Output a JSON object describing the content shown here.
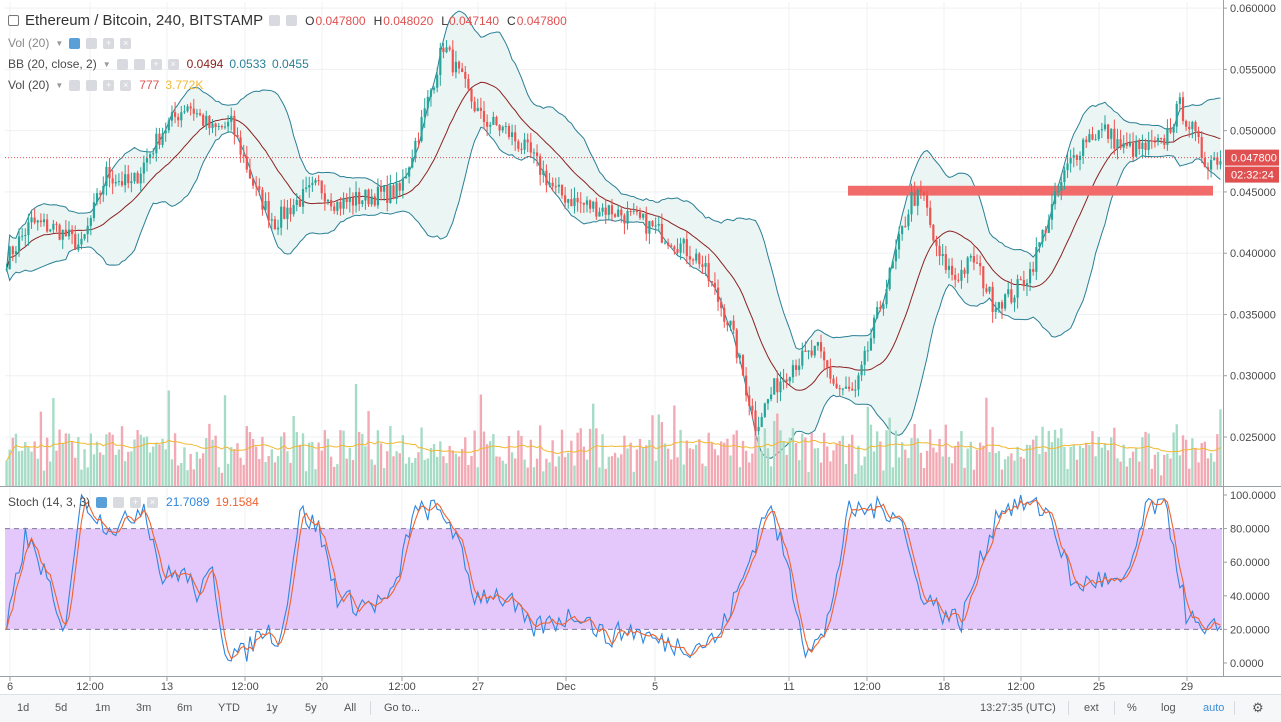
{
  "header": {
    "symbol": "Ethereum / Bitcoin, 240, BITSTAMP",
    "ohlc": [
      {
        "label": "O",
        "value": "0.047800"
      },
      {
        "label": "H",
        "value": "0.048020"
      },
      {
        "label": "L",
        "value": "0.047140"
      },
      {
        "label": "C",
        "value": "0.047800"
      }
    ]
  },
  "indicators": {
    "vol_top": {
      "label": "Vol (20)"
    },
    "bb": {
      "label": "BB (20, close, 2)",
      "basis": "0.0494",
      "upper": "0.0533",
      "lower": "0.0455"
    },
    "vol": {
      "label": "Vol (20)",
      "value": "777",
      "ma": "3.772K"
    },
    "stoch": {
      "label": "Stoch (14, 3, 3)",
      "k": "21.7089",
      "d": "19.1584"
    }
  },
  "price_axis": {
    "ticks": [
      "0.060000",
      "0.055000",
      "0.050000",
      "0.045000",
      "0.040000",
      "0.035000",
      "0.030000",
      "0.025000"
    ],
    "last_price": "0.047800",
    "countdown": "02:32:24"
  },
  "stoch_axis": {
    "ticks": [
      "100.0000",
      "80.0000",
      "60.0000",
      "40.0000",
      "20.0000",
      "0.0000"
    ]
  },
  "time_axis": {
    "labels": [
      "6",
      "12:00",
      "13",
      "12:00",
      "20",
      "12:00",
      "27",
      "Dec",
      "5",
      "11",
      "12:00",
      "18",
      "12:00",
      "25",
      "29"
    ]
  },
  "toolbar": {
    "ranges": [
      "1d",
      "5d",
      "1m",
      "3m",
      "6m",
      "YTD",
      "1y",
      "5y",
      "All"
    ],
    "goto": "Go to...",
    "clock": "13:27:35 (UTC)",
    "ext": "ext",
    "percent": "%",
    "log": "log",
    "auto": "auto"
  },
  "colors": {
    "up": "#26a69a",
    "down": "#ef5350",
    "up_vol": "#a6dbc5",
    "down_vol": "#f3a9b3",
    "bb_band": "#2a7f96",
    "bb_basis": "#8b2222",
    "bb_fill": "#ebf5f3",
    "vol_ma": "#f2b830",
    "stoch_k": "#2e86de",
    "stoch_d": "#f0632e",
    "stoch_band": "#e5c8fb",
    "resistance_zone": "#f26b6b",
    "accent": "#3d8fd8"
  },
  "chart_data": {
    "type": "candlestick",
    "title": "Ethereum / Bitcoin, 240, BITSTAMP",
    "x_labels": [
      "6",
      "12:00",
      "13",
      "12:00",
      "20",
      "12:00",
      "27",
      "Dec",
      "5",
      "11",
      "12:00",
      "18",
      "12:00",
      "25",
      "29"
    ],
    "ylim": [
      0.021,
      0.0605
    ],
    "close_path": [
      [
        0,
        0.0395
      ],
      [
        8,
        0.0425
      ],
      [
        16,
        0.042
      ],
      [
        24,
        0.0405
      ],
      [
        32,
        0.0465
      ],
      [
        40,
        0.0455
      ],
      [
        50,
        0.05
      ],
      [
        58,
        0.0522
      ],
      [
        66,
        0.05
      ],
      [
        72,
        0.0505
      ],
      [
        80,
        0.045
      ],
      [
        86,
        0.0425
      ],
      [
        92,
        0.044
      ],
      [
        100,
        0.0455
      ],
      [
        106,
        0.044
      ],
      [
        114,
        0.0445
      ],
      [
        120,
        0.0448
      ],
      [
        126,
        0.045
      ],
      [
        134,
        0.0515
      ],
      [
        140,
        0.057
      ],
      [
        146,
        0.054
      ],
      [
        152,
        0.051
      ],
      [
        160,
        0.05
      ],
      [
        168,
        0.048
      ],
      [
        176,
        0.045
      ],
      [
        184,
        0.044
      ],
      [
        194,
        0.0435
      ],
      [
        204,
        0.0425
      ],
      [
        214,
        0.041
      ],
      [
        222,
        0.0395
      ],
      [
        232,
        0.034
      ],
      [
        240,
        0.026
      ],
      [
        246,
        0.029
      ],
      [
        252,
        0.031
      ],
      [
        260,
        0.032
      ],
      [
        266,
        0.029
      ],
      [
        272,
        0.0285
      ],
      [
        278,
        0.034
      ],
      [
        284,
        0.039
      ],
      [
        290,
        0.0445
      ],
      [
        294,
        0.0445
      ],
      [
        298,
        0.04
      ],
      [
        304,
        0.038
      ],
      [
        310,
        0.0395
      ],
      [
        316,
        0.036
      ],
      [
        322,
        0.0365
      ],
      [
        328,
        0.0385
      ],
      [
        334,
        0.043
      ],
      [
        340,
        0.047
      ],
      [
        346,
        0.0495
      ],
      [
        352,
        0.05
      ],
      [
        358,
        0.0485
      ],
      [
        364,
        0.0485
      ],
      [
        370,
        0.0488
      ],
      [
        376,
        0.052
      ],
      [
        380,
        0.05
      ],
      [
        384,
        0.0475
      ],
      [
        388,
        0.0478
      ]
    ],
    "resistance_zone": [
      0.0447,
      0.0455
    ],
    "last_price": 0.0478,
    "bollinger": {
      "period": 20,
      "source": "close",
      "mult": 2,
      "basis": 0.0494,
      "upper": 0.0533,
      "lower": 0.0455
    },
    "volume": {
      "period": 20,
      "last": 777,
      "ma": "3.772K"
    },
    "stochastic": {
      "params": "14, 3, 3",
      "k_last": 21.7089,
      "d_last": 19.1584,
      "upper_band": 80,
      "lower_band": 20,
      "ylim": [
        0,
        100
      ],
      "k_path": [
        [
          0,
          20
        ],
        [
          6,
          75
        ],
        [
          12,
          55
        ],
        [
          18,
          15
        ],
        [
          24,
          100
        ],
        [
          30,
          85
        ],
        [
          36,
          80
        ],
        [
          44,
          95
        ],
        [
          50,
          50
        ],
        [
          56,
          55
        ],
        [
          62,
          40
        ],
        [
          66,
          55
        ],
        [
          70,
          8
        ],
        [
          76,
          5
        ],
        [
          82,
          20
        ],
        [
          88,
          15
        ],
        [
          94,
          90
        ],
        [
          100,
          80
        ],
        [
          106,
          40
        ],
        [
          112,
          35
        ],
        [
          118,
          35
        ],
        [
          124,
          40
        ],
        [
          130,
          88
        ],
        [
          136,
          92
        ],
        [
          142,
          85
        ],
        [
          150,
          40
        ],
        [
          156,
          42
        ],
        [
          162,
          35
        ],
        [
          168,
          20
        ],
        [
          176,
          25
        ],
        [
          184,
          30
        ],
        [
          192,
          15
        ],
        [
          200,
          20
        ],
        [
          210,
          12
        ],
        [
          220,
          10
        ],
        [
          228,
          15
        ],
        [
          236,
          50
        ],
        [
          244,
          95
        ],
        [
          250,
          60
        ],
        [
          256,
          10
        ],
        [
          262,
          15
        ],
        [
          270,
          90
        ],
        [
          278,
          92
        ],
        [
          286,
          90
        ],
        [
          292,
          45
        ],
        [
          300,
          30
        ],
        [
          306,
          25
        ],
        [
          312,
          60
        ],
        [
          318,
          92
        ],
        [
          326,
          95
        ],
        [
          334,
          90
        ],
        [
          342,
          45
        ],
        [
          350,
          50
        ],
        [
          358,
          45
        ],
        [
          366,
          95
        ],
        [
          372,
          90
        ],
        [
          378,
          30
        ],
        [
          384,
          15
        ],
        [
          388,
          22
        ]
      ]
    }
  }
}
